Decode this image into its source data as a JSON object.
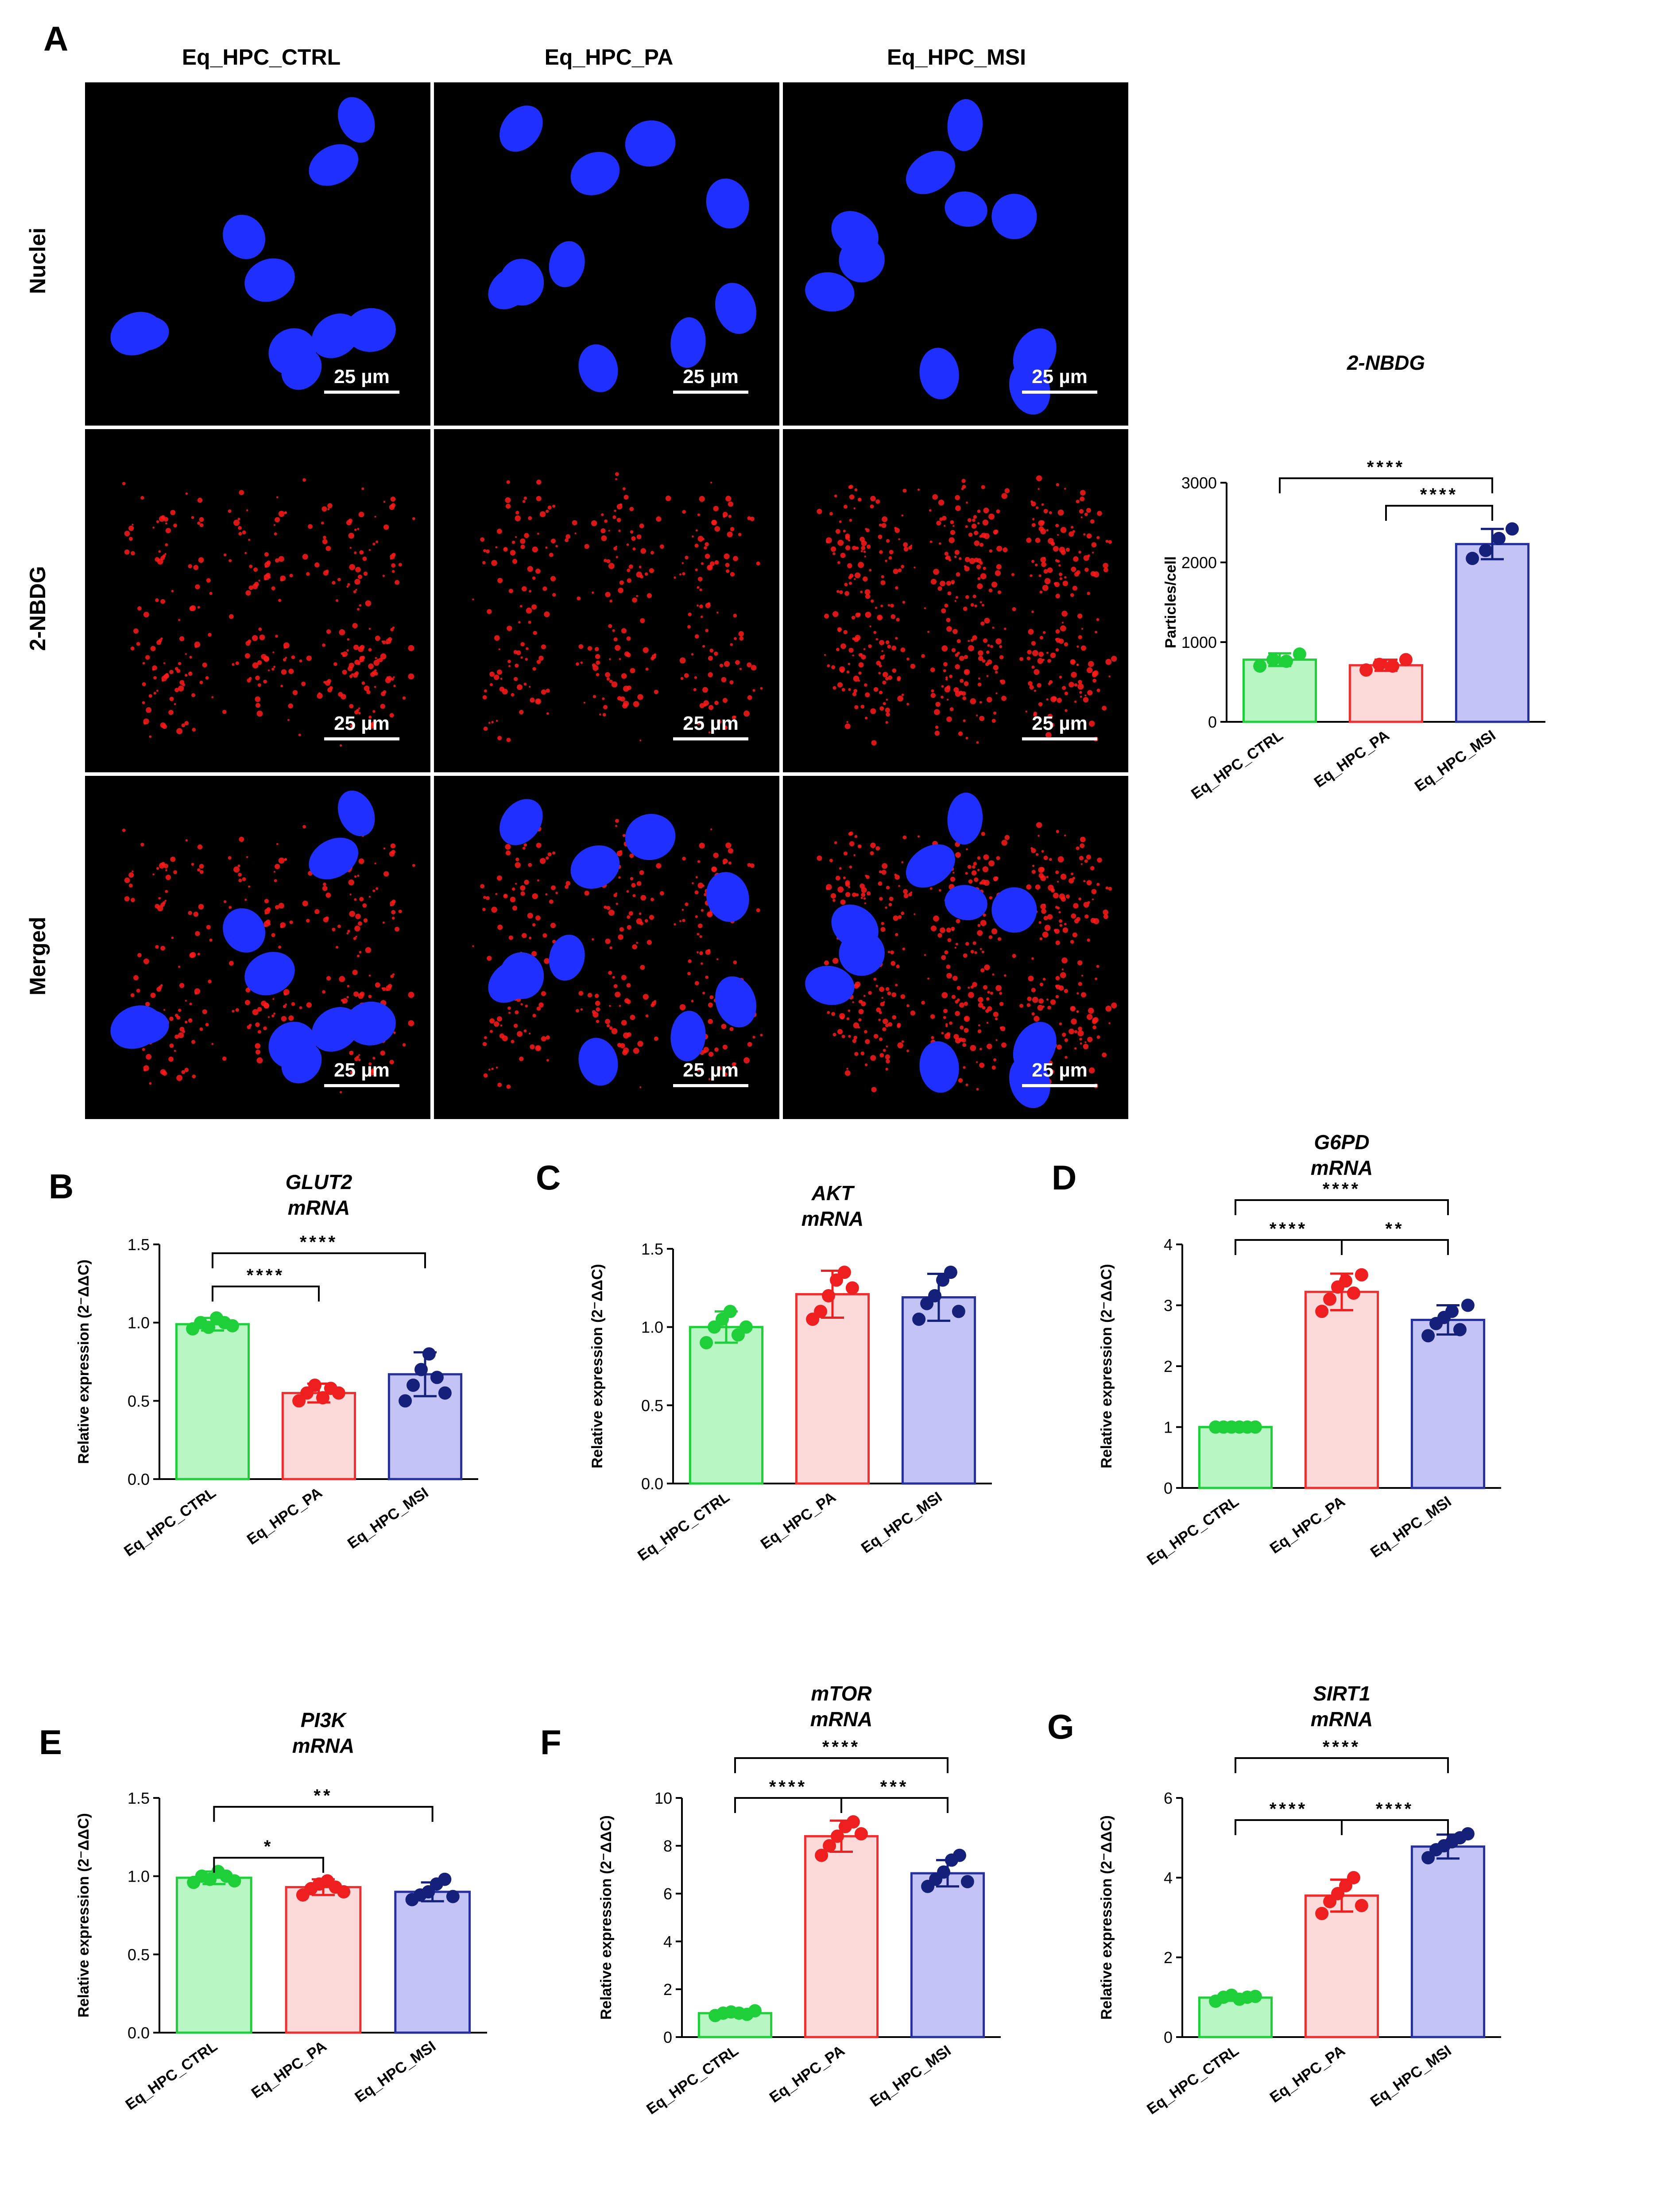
{
  "microscopy": {
    "label": "A",
    "columns": [
      "Eq_HPC_CTRL",
      "Eq_HPC_PA",
      "Eq_HPC_MSI"
    ],
    "rows": [
      "Nuclei",
      "2-NBDG",
      "Merged"
    ],
    "scale_bar_label": "25 µm",
    "nuclei_color": "#1f2fff",
    "particle_color": "#ff1a1a"
  },
  "chart_data": [
    {
      "id": "2nbdg",
      "type": "bar",
      "title_lines": [
        "2-NBDG"
      ],
      "ylabel": "Particles/cell",
      "categories": [
        "Eq_HPC_CTRL",
        "Eq_HPC_PA",
        "Eq_HPC_MSI"
      ],
      "values": [
        780,
        710,
        2230
      ],
      "errors": [
        80,
        70,
        190
      ],
      "points": [
        [
          700,
          780,
          760,
          850
        ],
        [
          650,
          720,
          700,
          780
        ],
        [
          2050,
          2150,
          2300,
          2420
        ]
      ],
      "ylim": [
        0,
        3000
      ],
      "yticks": [
        0,
        1000,
        2000,
        3000
      ],
      "significance": [
        {
          "from": 0,
          "to": 2,
          "label": "****"
        },
        {
          "from": 1,
          "to": 2,
          "label": "****"
        }
      ]
    },
    {
      "id": "glut2",
      "letter": "B",
      "type": "bar",
      "title_lines": [
        "GLUT2",
        "mRNA"
      ],
      "ylabel": "Relative expression (2⁻ΔΔC)",
      "categories": [
        "Eq_HPC_CTRL",
        "Eq_HPC_PA",
        "Eq_HPC_MSI"
      ],
      "values": [
        0.99,
        0.55,
        0.67
      ],
      "errors": [
        0.04,
        0.06,
        0.14
      ],
      "points": [
        [
          0.96,
          1.0,
          0.97,
          1.03,
          1.0,
          0.98
        ],
        [
          0.5,
          0.55,
          0.6,
          0.52,
          0.58,
          0.55
        ],
        [
          0.5,
          0.6,
          0.7,
          0.8,
          0.65,
          0.55
        ]
      ],
      "ylim": [
        0,
        1.5
      ],
      "yticks": [
        0.0,
        0.5,
        1.0,
        1.5
      ],
      "significance": [
        {
          "from": 0,
          "to": 2,
          "label": "****"
        },
        {
          "from": 0,
          "to": 1,
          "label": "****"
        }
      ]
    },
    {
      "id": "akt",
      "letter": "C",
      "type": "bar",
      "title_lines": [
        "AKT",
        "mRNA"
      ],
      "ylabel": "Relative expression (2⁻ΔΔC)",
      "categories": [
        "Eq_HPC_CTRL",
        "Eq_HPC_PA",
        "Eq_HPC_MSI"
      ],
      "values": [
        1.0,
        1.21,
        1.19
      ],
      "errors": [
        0.1,
        0.15,
        0.15
      ],
      "points": [
        [
          0.9,
          1.0,
          1.05,
          1.1,
          0.95,
          1.0
        ],
        [
          1.05,
          1.1,
          1.2,
          1.3,
          1.35,
          1.25
        ],
        [
          1.05,
          1.15,
          1.2,
          1.3,
          1.35,
          1.1
        ]
      ],
      "ylim": [
        0,
        1.5
      ],
      "yticks": [
        0.0,
        0.5,
        1.0,
        1.5
      ],
      "significance": []
    },
    {
      "id": "g6pd",
      "letter": "D",
      "type": "bar",
      "title_lines": [
        "G6PD",
        "mRNA"
      ],
      "ylabel": "Relative expression (2⁻ΔΔC)",
      "categories": [
        "Eq_HPC_CTRL",
        "Eq_HPC_PA",
        "Eq_HPC_MSI"
      ],
      "values": [
        1.0,
        3.22,
        2.76
      ],
      "errors": [
        0.03,
        0.3,
        0.24
      ],
      "points": [
        [
          1.0,
          1.0,
          1.0,
          1.0,
          1.0,
          1.0
        ],
        [
          2.9,
          3.1,
          3.3,
          3.4,
          3.2,
          3.5
        ],
        [
          2.5,
          2.7,
          2.8,
          2.9,
          2.6,
          3.0
        ]
      ],
      "ylim": [
        0,
        4
      ],
      "yticks": [
        0,
        1,
        2,
        3,
        4
      ],
      "significance": [
        {
          "from": 0,
          "to": 2,
          "label": "****"
        },
        {
          "from": 0,
          "to": 1,
          "label": "****"
        },
        {
          "from": 1,
          "to": 2,
          "label": "**"
        }
      ]
    },
    {
      "id": "pi3k",
      "letter": "E",
      "type": "bar",
      "title_lines": [
        "PI3K",
        "mRNA"
      ],
      "ylabel": "Relative expression (2⁻ΔΔC)",
      "categories": [
        "Eq_HPC_CTRL",
        "Eq_HPC_PA",
        "Eq_HPC_MSI"
      ],
      "values": [
        0.99,
        0.93,
        0.9
      ],
      "errors": [
        0.04,
        0.05,
        0.06
      ],
      "points": [
        [
          0.96,
          1.0,
          0.98,
          1.03,
          1.0,
          0.97
        ],
        [
          0.88,
          0.92,
          0.95,
          0.97,
          0.93,
          0.9
        ],
        [
          0.85,
          0.88,
          0.9,
          0.95,
          0.98,
          0.87
        ]
      ],
      "ylim": [
        0,
        1.5
      ],
      "yticks": [
        0.0,
        0.5,
        1.0,
        1.5
      ],
      "significance": [
        {
          "from": 0,
          "to": 2,
          "label": "**"
        },
        {
          "from": 0,
          "to": 1,
          "label": "*"
        }
      ]
    },
    {
      "id": "mtor",
      "letter": "F",
      "type": "bar",
      "title_lines": [
        "mTOR",
        "mRNA"
      ],
      "ylabel": "Relative expression (2⁻ΔΔC)",
      "categories": [
        "Eq_HPC_CTRL",
        "Eq_HPC_PA",
        "Eq_HPC_MSI"
      ],
      "values": [
        1.0,
        8.4,
        6.85
      ],
      "errors": [
        0.08,
        0.65,
        0.55
      ],
      "points": [
        [
          0.9,
          1.0,
          1.05,
          1.0,
          0.95,
          1.1
        ],
        [
          7.6,
          8.0,
          8.4,
          8.8,
          9.0,
          8.5
        ],
        [
          6.3,
          6.6,
          6.9,
          7.4,
          7.6,
          6.5
        ]
      ],
      "ylim": [
        0,
        10
      ],
      "yticks": [
        0,
        2,
        4,
        6,
        8,
        10
      ],
      "significance": [
        {
          "from": 0,
          "to": 2,
          "label": "****"
        },
        {
          "from": 0,
          "to": 1,
          "label": "****"
        },
        {
          "from": 1,
          "to": 2,
          "label": "***"
        }
      ]
    },
    {
      "id": "sirt1",
      "letter": "G",
      "type": "bar",
      "title_lines": [
        "SIRT1",
        "mRNA"
      ],
      "ylabel": "Relative expression (2⁻ΔΔC)",
      "categories": [
        "Eq_HPC_CTRL",
        "Eq_HPC_PA",
        "Eq_HPC_MSI"
      ],
      "values": [
        0.99,
        3.55,
        4.78
      ],
      "errors": [
        0.08,
        0.4,
        0.3
      ],
      "points": [
        [
          0.9,
          1.0,
          1.05,
          0.95,
          1.0,
          1.02
        ],
        [
          3.1,
          3.4,
          3.6,
          3.8,
          4.0,
          3.3
        ],
        [
          4.5,
          4.7,
          4.8,
          4.9,
          5.0,
          5.1
        ]
      ],
      "ylim": [
        0,
        6
      ],
      "yticks": [
        0,
        2,
        4,
        6
      ],
      "significance": [
        {
          "from": 0,
          "to": 2,
          "label": "****"
        },
        {
          "from": 0,
          "to": 1,
          "label": "****"
        },
        {
          "from": 1,
          "to": 2,
          "label": "****"
        }
      ]
    }
  ],
  "style": {
    "bar_fills": [
      "#b8f7c3",
      "#fddada",
      "#c3c3f5"
    ],
    "bar_strokes": [
      "#1fcf3a",
      "#ef2f2f",
      "#262f9e"
    ],
    "point_colors": [
      "#1fcf3a",
      "#ef1f1f",
      "#14207a"
    ]
  }
}
